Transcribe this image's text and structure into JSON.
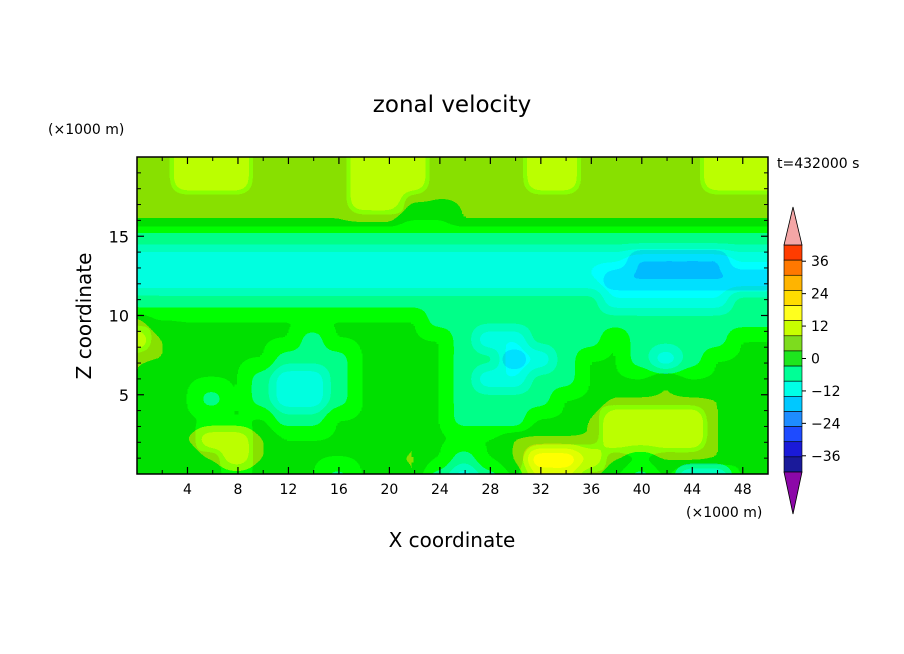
{
  "chart_data": {
    "type": "heatmap",
    "title": "zonal velocity",
    "xlabel": "X coordinate",
    "ylabel": "Z coordinate",
    "x_unit": "(×1000 m)",
    "y_unit": "(×1000 m)",
    "time_label": "t=432000 s",
    "xlim": [
      0,
      50
    ],
    "ylim": [
      0,
      20
    ],
    "x_ticks": [
      4,
      8,
      12,
      16,
      20,
      24,
      28,
      32,
      36,
      40,
      44,
      48
    ],
    "y_ticks": [
      5,
      10,
      15
    ],
    "colorbar": {
      "levels": [
        -42,
        -36,
        -30,
        -24,
        -18,
        -12,
        -6,
        0,
        6,
        12,
        18,
        24,
        30,
        36,
        42
      ],
      "labels": [
        36,
        24,
        12,
        0,
        -12,
        -24,
        -36
      ],
      "colors": [
        "#6a0aa8",
        "#1a1a9a",
        "#1a1ad8",
        "#1e4bff",
        "#1e8cff",
        "#00c8ff",
        "#00ffe6",
        "#00ff96",
        "#1ee61e",
        "#7ddc1e",
        "#c8ff00",
        "#ffff1e",
        "#ffdc00",
        "#ffb400",
        "#ff7800",
        "#ff3c00",
        "#ff0000"
      ],
      "over_color": "#f4a6a6",
      "under_color": "#8c08a8"
    },
    "grid": [
      [
        3,
        2,
        0,
        1,
        2,
        1,
        4,
        2,
        -1,
        0,
        3,
        6,
        -2,
        -8,
        -3,
        2,
        12,
        16,
        10,
        3,
        -1,
        0,
        -12,
        -10,
        0
      ],
      [
        5,
        3,
        4,
        10,
        12,
        8,
        5,
        3,
        1,
        2,
        6,
        9,
        4,
        -2,
        2,
        10,
        20,
        22,
        14,
        6,
        4,
        8,
        10,
        6,
        2
      ],
      [
        4,
        2,
        6,
        12,
        14,
        10,
        4,
        2,
        0,
        1,
        4,
        6,
        3,
        1,
        4,
        6,
        8,
        10,
        7,
        12,
        14,
        16,
        12,
        8,
        3
      ],
      [
        3,
        1,
        2,
        4,
        3,
        1,
        -2,
        -4,
        0,
        2,
        3,
        2,
        3,
        -2,
        -4,
        -3,
        0,
        2,
        6,
        12,
        15,
        16,
        14,
        10,
        4
      ],
      [
        4,
        2,
        0,
        -1,
        0,
        -3,
        -8,
        -9,
        -3,
        1,
        2,
        1,
        0,
        -4,
        -6,
        -5,
        -2,
        0,
        4,
        8,
        10,
        10,
        8,
        6,
        2
      ],
      [
        6,
        4,
        1,
        0,
        1,
        -2,
        -7,
        -9,
        -4,
        2,
        3,
        1,
        1,
        -5,
        -8,
        -10,
        -4,
        -1,
        0,
        3,
        4,
        6,
        5,
        3,
        1
      ],
      [
        10,
        8,
        3,
        1,
        2,
        0,
        -4,
        -6,
        -2,
        2,
        3,
        3,
        2,
        -3,
        -6,
        -14,
        -9,
        -4,
        0,
        2,
        -4,
        -8,
        -6,
        0,
        0
      ],
      [
        12,
        10,
        4,
        2,
        3,
        1,
        0,
        -1,
        2,
        3,
        2,
        1,
        0,
        -5,
        -8,
        -10,
        -6,
        -4,
        -2,
        0,
        -2,
        -6,
        -4,
        -1,
        0
      ],
      [
        6,
        4,
        2,
        2,
        3,
        2,
        2,
        2,
        3,
        2,
        1,
        0,
        -2,
        -3,
        -6,
        -6,
        -4,
        -3,
        -2,
        -2,
        -3,
        -4,
        -3,
        -2,
        -1
      ],
      [
        -5,
        -4,
        -4,
        -3,
        -3,
        -3,
        -5,
        -5,
        -3,
        -4,
        -5,
        -5,
        -6,
        -5,
        -6,
        -6,
        -6,
        -6,
        -6,
        -7,
        -7,
        -8,
        -8,
        -7,
        -6
      ],
      [
        -10,
        -10,
        -9,
        -10,
        -10,
        -9,
        -10,
        -11,
        -10,
        -10,
        -10,
        -9,
        -10,
        -10,
        -10,
        -10,
        -10,
        -12,
        -12,
        -16,
        -17,
        -18,
        -18,
        -16,
        -14
      ],
      [
        -9,
        -10,
        -10,
        -9,
        -8,
        -9,
        -10,
        -10,
        -10,
        -9,
        -9,
        -10,
        -10,
        -11,
        -10,
        -10,
        -10,
        -10,
        -10,
        -12,
        -13,
        -14,
        -14,
        -13,
        -12
      ],
      [
        -3,
        -3,
        -4,
        -4,
        -3,
        -3,
        -4,
        -3,
        -2,
        -2,
        -3,
        -4,
        -4,
        -3,
        -3,
        -3,
        -2,
        -2,
        -2,
        -2,
        -3,
        -3,
        -2,
        -2,
        -2
      ],
      [
        6,
        6,
        6,
        7,
        8,
        9,
        10,
        10,
        9,
        8,
        6,
        5,
        5,
        6,
        7,
        7,
        7,
        6,
        6,
        6,
        6,
        6,
        6,
        6,
        6
      ],
      [
        10,
        10,
        11,
        11,
        10,
        10,
        10,
        10,
        11,
        12,
        12,
        11,
        10,
        10,
        9,
        10,
        10,
        10,
        10,
        10,
        10,
        10,
        10,
        10,
        10
      ],
      [
        10,
        11,
        13,
        15,
        12,
        10,
        11,
        10,
        10,
        13,
        14,
        12,
        11,
        10,
        10,
        10,
        12,
        12,
        10,
        10,
        10,
        10,
        11,
        12,
        12
      ]
    ]
  }
}
